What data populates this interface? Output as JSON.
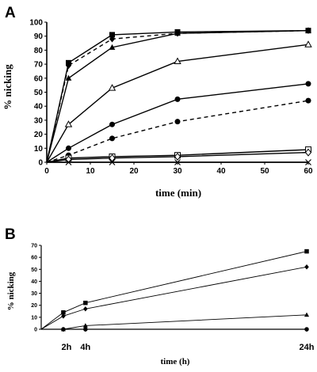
{
  "chart_data": [
    {
      "panel": "A",
      "type": "line",
      "xlabel": "time (min)",
      "ylabel": "% nicking",
      "xlim": [
        0,
        60
      ],
      "ylim": [
        0,
        100
      ],
      "xticks": [
        "0",
        "10",
        "20",
        "30",
        "40",
        "50",
        "60"
      ],
      "yticks": [
        "0",
        "10",
        "20",
        "30",
        "40",
        "50",
        "60",
        "70",
        "80",
        "90",
        "100"
      ],
      "grid": false,
      "x": [
        0,
        5,
        15,
        30,
        60
      ],
      "series": [
        {
          "marker": "square-filled",
          "line": "solid",
          "values": [
            0,
            71,
            91,
            93,
            94
          ]
        },
        {
          "marker": "diamond-filled",
          "line": "dashed",
          "values": [
            0,
            69,
            88,
            92,
            94
          ]
        },
        {
          "marker": "triangle-filled",
          "line": "solid",
          "values": [
            0,
            60,
            82,
            92,
            94
          ]
        },
        {
          "marker": "triangle-open",
          "line": "solid",
          "values": [
            0,
            27,
            53,
            72,
            84
          ]
        },
        {
          "marker": "circle-filled",
          "line": "solid",
          "values": [
            0,
            10,
            27,
            45,
            56
          ]
        },
        {
          "marker": "circle-filled",
          "line": "dashed",
          "values": [
            0,
            5,
            17,
            29,
            44
          ]
        },
        {
          "marker": "square-open",
          "line": "solid",
          "values": [
            0,
            3,
            4,
            5,
            9
          ]
        },
        {
          "marker": "diamond-open",
          "line": "solid",
          "values": [
            0,
            2,
            3,
            4,
            7
          ]
        },
        {
          "marker": "x",
          "line": "solid",
          "values": [
            0,
            0,
            0,
            0,
            0
          ]
        }
      ]
    },
    {
      "panel": "B",
      "type": "line",
      "xlabel": "time (h)",
      "ylabel": "% nicking",
      "xlim": [
        0,
        24
      ],
      "ylim": [
        0,
        70
      ],
      "xticks": [
        "2h",
        "4h",
        "24h"
      ],
      "xtick_values": [
        2,
        4,
        24
      ],
      "yticks": [
        "0",
        "10",
        "20",
        "30",
        "40",
        "50",
        "60",
        "70"
      ],
      "grid": false,
      "x": [
        0,
        2,
        4,
        24
      ],
      "series": [
        {
          "marker": "square-filled",
          "line": "solid",
          "values": [
            0,
            14,
            22,
            65
          ]
        },
        {
          "marker": "diamond-filled",
          "line": "solid",
          "values": [
            0,
            11,
            17,
            52
          ]
        },
        {
          "marker": "triangle-filled",
          "line": "solid",
          "values": [
            0,
            0,
            3,
            12
          ]
        },
        {
          "marker": "circle-filled",
          "line": "solid",
          "values": [
            0,
            0,
            0,
            0
          ]
        }
      ]
    }
  ]
}
